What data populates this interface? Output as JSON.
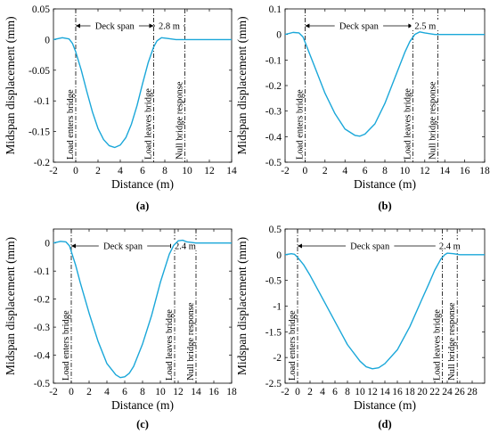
{
  "figure": {
    "line_color": "#1aa7d9",
    "panels": [
      {
        "label": "(a)",
        "chart_data": {
          "type": "line",
          "xlabel": "Distance (m)",
          "ylabel": "Midspan displacement (mm)",
          "xlim": [
            -2,
            14
          ],
          "ylim": [
            -0.2,
            0.05
          ],
          "xticks": [
            -2,
            0,
            2,
            4,
            6,
            8,
            10,
            12,
            14
          ],
          "yticks": [
            0.05,
            0,
            -0.05,
            -0.1,
            -0.15,
            -0.2
          ],
          "ytick_labels": [
            "0.05",
            "0",
            "-0.05",
            "-0.1",
            "-0.15",
            "-0.2"
          ],
          "series": [
            {
              "x": [
                -2,
                -1.2,
                -0.6,
                -0.3,
                0,
                0.5,
                1,
                1.5,
                2,
                2.5,
                3,
                3.5,
                4,
                4.5,
                5,
                5.5,
                6,
                6.5,
                7,
                7.3,
                7.7,
                8.2,
                9,
                10,
                14
              ],
              "y": [
                0,
                0.003,
                0.001,
                -0.006,
                -0.02,
                -0.05,
                -0.085,
                -0.118,
                -0.145,
                -0.163,
                -0.173,
                -0.176,
                -0.172,
                -0.16,
                -0.138,
                -0.108,
                -0.072,
                -0.038,
                -0.012,
                -0.002,
                0.003,
                0.002,
                0,
                0,
                0
              ]
            }
          ],
          "markers": [
            {
              "x": 0,
              "label": "Load enters bridge"
            },
            {
              "x": 7,
              "label": "Load leaves bridge"
            },
            {
              "x": 9.8,
              "label": "Null bridge response"
            }
          ],
          "spans": [
            {
              "from": 0,
              "to": 7,
              "label": "Deck span"
            },
            {
              "from": 7,
              "to": 9.8,
              "label": "2.8 m"
            }
          ]
        }
      },
      {
        "label": "(b)",
        "chart_data": {
          "type": "line",
          "xlabel": "Distance (m)",
          "ylabel": "Midspan displacement (mm)",
          "xlim": [
            -2,
            18
          ],
          "ylim": [
            -0.5,
            0.1
          ],
          "xticks": [
            -2,
            0,
            2,
            4,
            6,
            8,
            10,
            12,
            14,
            16,
            18
          ],
          "yticks": [
            0.1,
            0,
            -0.1,
            -0.2,
            -0.3,
            -0.4,
            -0.5
          ],
          "ytick_labels": [
            "0.1",
            "0",
            "-0.1",
            "-0.2",
            "-0.3",
            "-0.4",
            "-0.5"
          ],
          "series": [
            {
              "x": [
                -2,
                -1.2,
                -0.6,
                -0.2,
                0,
                0.5,
                1,
                2,
                3,
                4,
                5,
                5.5,
                6,
                7,
                8,
                9,
                10,
                10.5,
                11,
                11.5,
                12,
                13,
                18
              ],
              "y": [
                0,
                0.008,
                0.006,
                -0.01,
                -0.03,
                -0.08,
                -0.13,
                -0.23,
                -0.31,
                -0.37,
                -0.395,
                -0.398,
                -0.39,
                -0.35,
                -0.27,
                -0.17,
                -0.07,
                -0.028,
                0,
                0.01,
                0.006,
                0,
                0
              ]
            }
          ],
          "markers": [
            {
              "x": 0,
              "label": "Load enters bridge"
            },
            {
              "x": 10.8,
              "label": "Load leaves bridge"
            },
            {
              "x": 13.3,
              "label": "Null bridge response"
            }
          ],
          "spans": [
            {
              "from": 0,
              "to": 10.8,
              "label": "Deck span"
            },
            {
              "from": 10.8,
              "to": 13.3,
              "label": "2.5 m"
            }
          ]
        }
      },
      {
        "label": "(c)",
        "chart_data": {
          "type": "line",
          "xlabel": "Distance (m)",
          "ylabel": "Midspan displacement (mm)",
          "xlim": [
            -2,
            18
          ],
          "ylim": [
            -0.5,
            0.05
          ],
          "xticks": [
            -2,
            0,
            2,
            4,
            6,
            8,
            10,
            12,
            14,
            16,
            18
          ],
          "yticks": [
            0,
            -0.1,
            -0.2,
            -0.3,
            -0.4,
            -0.5
          ],
          "ytick_labels": [
            "0",
            "-0.1",
            "-0.2",
            "-0.3",
            "-0.4",
            "-0.5"
          ],
          "series": [
            {
              "x": [
                -2,
                -1.2,
                -0.6,
                -0.2,
                0,
                0.5,
                1,
                2,
                3,
                4,
                5,
                5.5,
                6,
                6.5,
                7,
                8,
                9,
                10,
                11,
                11.5,
                12,
                12.5,
                13,
                14,
                18
              ],
              "y": [
                0,
                0.006,
                0.004,
                -0.01,
                -0.03,
                -0.08,
                -0.14,
                -0.25,
                -0.35,
                -0.43,
                -0.47,
                -0.48,
                -0.477,
                -0.465,
                -0.44,
                -0.36,
                -0.26,
                -0.14,
                -0.04,
                -0.008,
                0.008,
                0.01,
                0.004,
                0,
                0
              ]
            }
          ],
          "markers": [
            {
              "x": 0,
              "label": "Load enters bridge"
            },
            {
              "x": 11.6,
              "label": "Load leaves bridge"
            },
            {
              "x": 14,
              "label": "Null bridge response"
            }
          ],
          "spans": [
            {
              "from": 0,
              "to": 11.6,
              "label": "Deck span"
            },
            {
              "from": 11.6,
              "to": 14,
              "label": "2.4 m"
            }
          ]
        }
      },
      {
        "label": "(d)",
        "chart_data": {
          "type": "line",
          "xlabel": "Distance (m)",
          "ylabel": "Midspan displacement (mm)",
          "xlim": [
            -2,
            30
          ],
          "ylim": [
            -2.5,
            0.5
          ],
          "xticks": [
            -2,
            0,
            2,
            4,
            6,
            8,
            10,
            12,
            14,
            16,
            18,
            20,
            22,
            24,
            26,
            28
          ],
          "yticks": [
            0.5,
            0,
            -0.5,
            -1,
            -1.5,
            -2,
            -2.5
          ],
          "ytick_labels": [
            "0.5",
            "0",
            "-0.5",
            "-1",
            "-1.5",
            "-2",
            "-2.5"
          ],
          "series": [
            {
              "x": [
                -2,
                -1,
                -0.5,
                0,
                1,
                2,
                4,
                6,
                8,
                10,
                11,
                12,
                13,
                14,
                16,
                18,
                20,
                21,
                22,
                23,
                23.6,
                24,
                25,
                26,
                30
              ],
              "y": [
                0,
                0.02,
                0.01,
                -0.05,
                -0.2,
                -0.4,
                -0.85,
                -1.3,
                -1.75,
                -2.07,
                -2.18,
                -2.22,
                -2.2,
                -2.12,
                -1.85,
                -1.4,
                -0.85,
                -0.58,
                -0.3,
                -0.08,
                0,
                0.03,
                0.02,
                0,
                0
              ]
            }
          ],
          "markers": [
            {
              "x": 0,
              "label": "Load enters bridge"
            },
            {
              "x": 23.2,
              "label": "Load leaves bridge"
            },
            {
              "x": 25.6,
              "label": "Null bridge response"
            }
          ],
          "spans": [
            {
              "from": 0,
              "to": 23.2,
              "label": "Deck span"
            },
            {
              "from": 23.2,
              "to": 25.6,
              "label": "2.4 m"
            }
          ]
        }
      }
    ]
  }
}
